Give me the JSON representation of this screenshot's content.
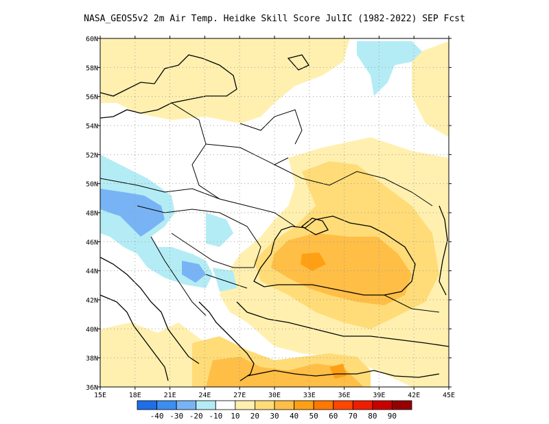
{
  "title": "NASA_GEOS5v2  2m Air Temp. Heidke Skill Score JulIC (1982-2022) SEP Fcst",
  "lon_labels": [
    "15E",
    "18E",
    "21E",
    "24E",
    "27E",
    "30E",
    "33E",
    "36E",
    "39E",
    "42E",
    "45E"
  ],
  "lat_labels": [
    "36N",
    "38N",
    "40N",
    "42N",
    "44N",
    "46N",
    "48N",
    "50N",
    "52N",
    "54N",
    "56N",
    "58N",
    "60N"
  ],
  "colorbar": {
    "colors": [
      "#1e6ee8",
      "#3c8ef0",
      "#78b4f5",
      "#b4ecf5",
      "#ffffff",
      "#fff0b0",
      "#ffdc78",
      "#ffbe46",
      "#ffa014",
      "#ff7800",
      "#ff4600",
      "#f01e00",
      "#c80000",
      "#960000"
    ],
    "labels": [
      "-40",
      "-30",
      "-20",
      "-10",
      "10",
      "20",
      "30",
      "40",
      "50",
      "60",
      "70",
      "80",
      "90"
    ]
  },
  "legend_scale": "Heidke Skill Score"
}
